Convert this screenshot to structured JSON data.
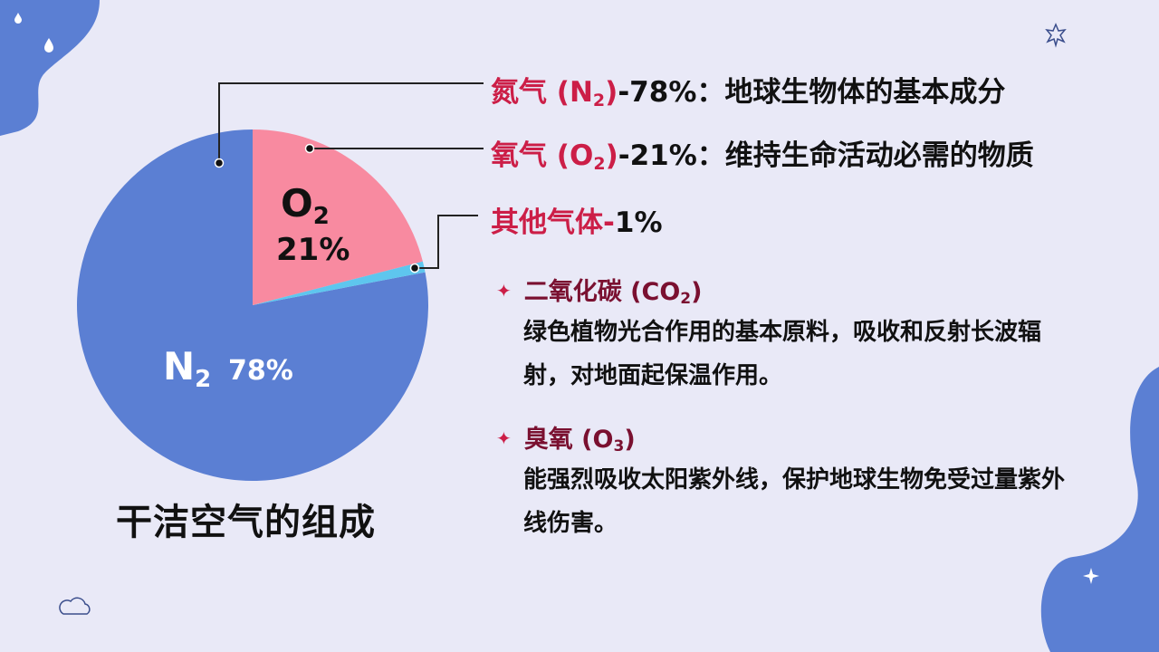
{
  "chart_data": {
    "type": "pie",
    "title": "干洁空气的组成",
    "slices": [
      {
        "label": "N2",
        "value": 78,
        "color": "#5b7fd3"
      },
      {
        "label": "O2",
        "value": 21,
        "color": "#f88aa0"
      },
      {
        "label": "其他气体",
        "value": 1,
        "color": "#5ec6ee"
      }
    ]
  },
  "pie_labels": {
    "o2_symbol": "O",
    "o2_sub": "2",
    "o2_pct": "21%",
    "n2_symbol": "N",
    "n2_sub": "2",
    "n2_pct": "78%"
  },
  "legend": {
    "nitrogen": {
      "name_a": "氮气 (N",
      "name_sub": "2",
      "name_b": ")",
      "rest": "-78%：地球生物体的基本成分"
    },
    "oxygen": {
      "name_a": "氧气 (O",
      "name_sub": "2",
      "name_b": ")",
      "rest": "-21%：维持生命活动必需的物质"
    },
    "other": {
      "name": "其他气体-",
      "rest": "1%"
    }
  },
  "details": {
    "co2": {
      "star": "✦",
      "head_a": "二氧化碳 (CO",
      "head_sub": "2",
      "head_b": ")",
      "desc": "绿色植物光合作用的基本原料，吸收和反射长波辐射，对地面起保温作用。"
    },
    "o3": {
      "star": "✦",
      "head_a": "臭氧 (O",
      "head_sub": "3",
      "head_b": ")",
      "desc": "能强烈吸收太阳紫外线，保护地球生物免受过量紫外线伤害。"
    }
  },
  "colors": {
    "accent": "#cc1e47",
    "background": "#e9e9f7",
    "blob": "#5b7fd3"
  }
}
